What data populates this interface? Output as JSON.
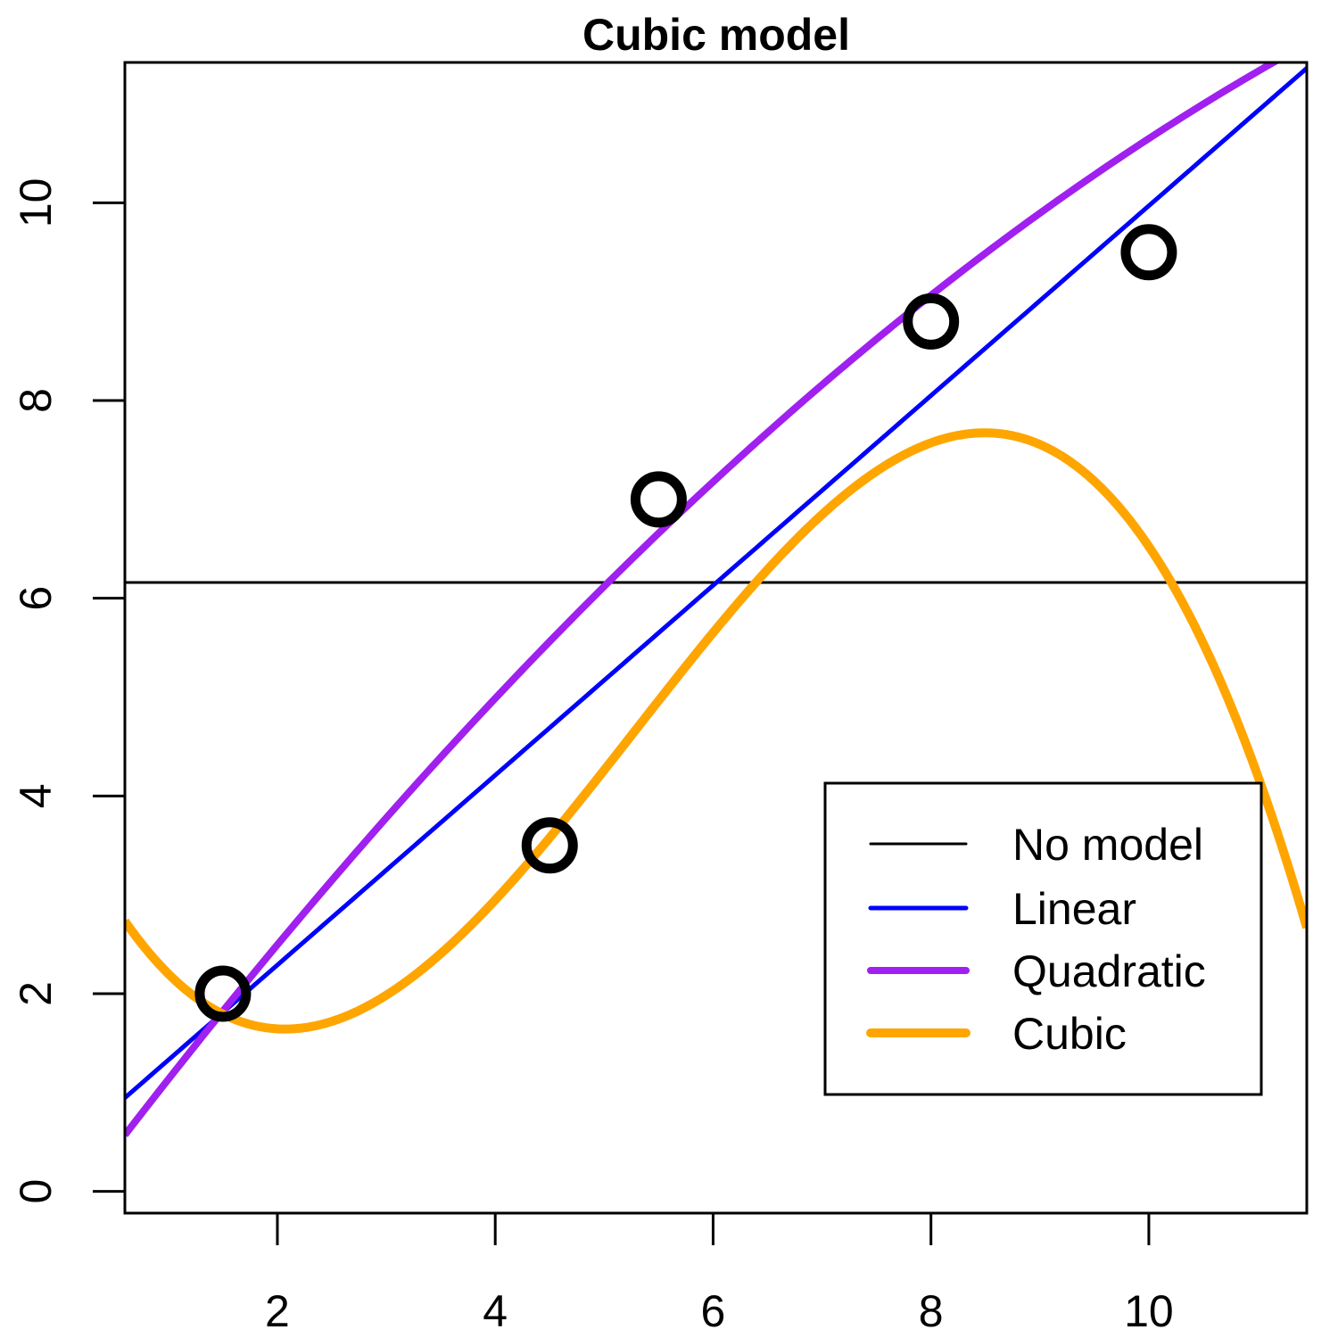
{
  "chart_data": {
    "type": "scatter",
    "title": "Cubic model",
    "xlabel": "",
    "ylabel": "",
    "xlim": [
      0.6,
      11.45
    ],
    "ylim": [
      -0.22,
      11.42
    ],
    "x_ticks": [
      2,
      4,
      6,
      8,
      10
    ],
    "y_ticks": [
      0,
      2,
      4,
      6,
      8,
      10
    ],
    "grid": false,
    "legend_position": "bottom-right",
    "points": {
      "x": [
        1.5,
        4.5,
        5.5,
        8,
        10
      ],
      "y": [
        2,
        3.5,
        7,
        8.8,
        9.5
      ],
      "color": "#000000"
    },
    "series": [
      {
        "name": "No model",
        "color": "#000000",
        "model": "constant",
        "coef": [
          6.16
        ]
      },
      {
        "name": "Linear",
        "color": "#0000ff",
        "model": "linear",
        "coef": [
          0.37,
          0.96
        ]
      },
      {
        "name": "Quadratic",
        "color": "#a020f0",
        "model": "quadratic",
        "coef": [
          -0.3,
          1.473,
          -0.0378
        ]
      },
      {
        "name": "Cubic",
        "color": "#ffa500",
        "model": "cubic",
        "coef": [
          3.924,
          -2.4,
          0.721,
          -0.0455
        ]
      }
    ]
  }
}
